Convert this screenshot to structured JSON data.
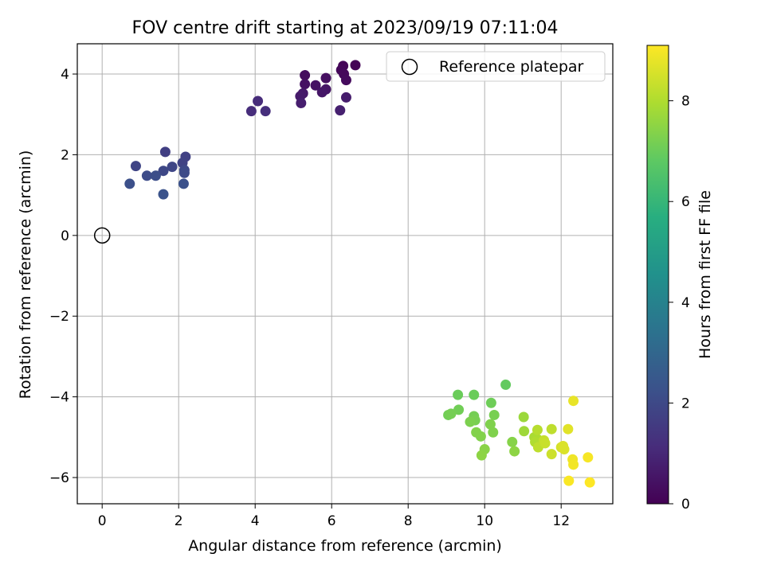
{
  "chart_data": {
    "type": "scatter",
    "title": "FOV centre drift starting at 2023/09/19 07:11:04",
    "xlabel": "Angular distance from reference (arcmin)",
    "ylabel": "Rotation from reference (arcmin)",
    "xlim": [
      -0.65,
      13.35
    ],
    "ylim": [
      -6.65,
      4.75
    ],
    "xticks": [
      0,
      2,
      4,
      6,
      8,
      10,
      12
    ],
    "yticks": [
      -6,
      -4,
      -2,
      0,
      2,
      4
    ],
    "xtick_labels": [
      "0",
      "2",
      "4",
      "6",
      "8",
      "10",
      "12"
    ],
    "ytick_labels": [
      "−6",
      "−4",
      "−2",
      "0",
      "2",
      "4"
    ],
    "grid": true,
    "legend": {
      "placement": "top-right",
      "entries": [
        "Reference platepar"
      ]
    },
    "colorbar": {
      "label": "Hours from first FF file",
      "range": [
        0,
        9.1
      ],
      "ticks": [
        0,
        2,
        4,
        6,
        8
      ],
      "tick_labels": [
        "0",
        "2",
        "4",
        "6",
        "8"
      ],
      "colormap": "viridis"
    },
    "reference_point": {
      "x": 0,
      "y": 0
    },
    "points": [
      {
        "x": 6.62,
        "y": 4.22,
        "c": 0.05
      },
      {
        "x": 6.3,
        "y": 4.2,
        "c": 0.1
      },
      {
        "x": 6.25,
        "y": 4.1,
        "c": 0.15
      },
      {
        "x": 6.32,
        "y": 4.0,
        "c": 0.2
      },
      {
        "x": 6.38,
        "y": 3.85,
        "c": 0.25
      },
      {
        "x": 5.3,
        "y": 3.97,
        "c": 0.3
      },
      {
        "x": 5.85,
        "y": 3.9,
        "c": 0.35
      },
      {
        "x": 5.3,
        "y": 3.75,
        "c": 0.4
      },
      {
        "x": 5.58,
        "y": 3.72,
        "c": 0.45
      },
      {
        "x": 5.85,
        "y": 3.62,
        "c": 0.5
      },
      {
        "x": 5.75,
        "y": 3.55,
        "c": 0.55
      },
      {
        "x": 5.25,
        "y": 3.52,
        "c": 0.6
      },
      {
        "x": 5.18,
        "y": 3.45,
        "c": 0.65
      },
      {
        "x": 6.38,
        "y": 3.42,
        "c": 0.7
      },
      {
        "x": 5.2,
        "y": 3.28,
        "c": 0.75
      },
      {
        "x": 6.22,
        "y": 3.1,
        "c": 0.8
      },
      {
        "x": 4.07,
        "y": 3.33,
        "c": 1.1
      },
      {
        "x": 3.9,
        "y": 3.08,
        "c": 1.15
      },
      {
        "x": 4.27,
        "y": 3.08,
        "c": 1.2
      },
      {
        "x": 1.65,
        "y": 2.07,
        "c": 1.7
      },
      {
        "x": 2.18,
        "y": 1.95,
        "c": 1.75
      },
      {
        "x": 2.1,
        "y": 1.8,
        "c": 1.8
      },
      {
        "x": 0.88,
        "y": 1.72,
        "c": 1.85
      },
      {
        "x": 1.83,
        "y": 1.7,
        "c": 1.9
      },
      {
        "x": 1.6,
        "y": 1.6,
        "c": 1.95
      },
      {
        "x": 2.15,
        "y": 1.62,
        "c": 2.0
      },
      {
        "x": 2.15,
        "y": 1.55,
        "c": 2.05
      },
      {
        "x": 1.17,
        "y": 1.48,
        "c": 2.1
      },
      {
        "x": 1.4,
        "y": 1.48,
        "c": 2.15
      },
      {
        "x": 0.72,
        "y": 1.28,
        "c": 2.2
      },
      {
        "x": 2.13,
        "y": 1.28,
        "c": 2.25
      },
      {
        "x": 1.6,
        "y": 1.02,
        "c": 2.3
      },
      {
        "x": 10.55,
        "y": -3.7,
        "c": 6.9
      },
      {
        "x": 9.3,
        "y": -3.95,
        "c": 7.0
      },
      {
        "x": 9.72,
        "y": -3.95,
        "c": 7.0
      },
      {
        "x": 10.17,
        "y": -4.15,
        "c": 7.05
      },
      {
        "x": 9.32,
        "y": -4.32,
        "c": 7.1
      },
      {
        "x": 9.05,
        "y": -4.45,
        "c": 7.1
      },
      {
        "x": 9.12,
        "y": -4.42,
        "c": 7.15
      },
      {
        "x": 9.72,
        "y": -4.48,
        "c": 7.15
      },
      {
        "x": 10.25,
        "y": -4.45,
        "c": 7.2
      },
      {
        "x": 9.75,
        "y": -4.58,
        "c": 7.2
      },
      {
        "x": 9.62,
        "y": -4.62,
        "c": 7.25
      },
      {
        "x": 10.15,
        "y": -4.68,
        "c": 7.3
      },
      {
        "x": 10.22,
        "y": -4.88,
        "c": 7.3
      },
      {
        "x": 9.78,
        "y": -4.88,
        "c": 7.35
      },
      {
        "x": 9.9,
        "y": -4.98,
        "c": 7.35
      },
      {
        "x": 10.72,
        "y": -5.12,
        "c": 7.4
      },
      {
        "x": 10.0,
        "y": -5.3,
        "c": 7.45
      },
      {
        "x": 10.78,
        "y": -5.35,
        "c": 7.5
      },
      {
        "x": 9.92,
        "y": -5.45,
        "c": 7.5
      },
      {
        "x": 11.02,
        "y": -4.5,
        "c": 7.7
      },
      {
        "x": 11.03,
        "y": -4.85,
        "c": 7.75
      },
      {
        "x": 11.3,
        "y": -5.0,
        "c": 7.9
      },
      {
        "x": 11.38,
        "y": -5.05,
        "c": 7.95
      },
      {
        "x": 11.32,
        "y": -5.12,
        "c": 8.0
      },
      {
        "x": 11.38,
        "y": -4.82,
        "c": 8.1
      },
      {
        "x": 11.75,
        "y": -4.8,
        "c": 8.2
      },
      {
        "x": 11.4,
        "y": -5.25,
        "c": 8.2
      },
      {
        "x": 11.55,
        "y": -5.08,
        "c": 8.3
      },
      {
        "x": 11.58,
        "y": -5.15,
        "c": 8.35
      },
      {
        "x": 11.75,
        "y": -5.42,
        "c": 8.4
      },
      {
        "x": 12.0,
        "y": -5.25,
        "c": 8.5
      },
      {
        "x": 12.05,
        "y": -5.22,
        "c": 8.6
      },
      {
        "x": 12.08,
        "y": -5.3,
        "c": 8.6
      },
      {
        "x": 12.18,
        "y": -4.8,
        "c": 8.7
      },
      {
        "x": 12.32,
        "y": -4.1,
        "c": 8.8
      },
      {
        "x": 12.3,
        "y": -5.55,
        "c": 8.9
      },
      {
        "x": 12.32,
        "y": -5.68,
        "c": 8.95
      },
      {
        "x": 12.7,
        "y": -5.5,
        "c": 9.0
      },
      {
        "x": 12.2,
        "y": -6.08,
        "c": 9.05
      },
      {
        "x": 12.75,
        "y": -6.12,
        "c": 9.1
      }
    ]
  }
}
